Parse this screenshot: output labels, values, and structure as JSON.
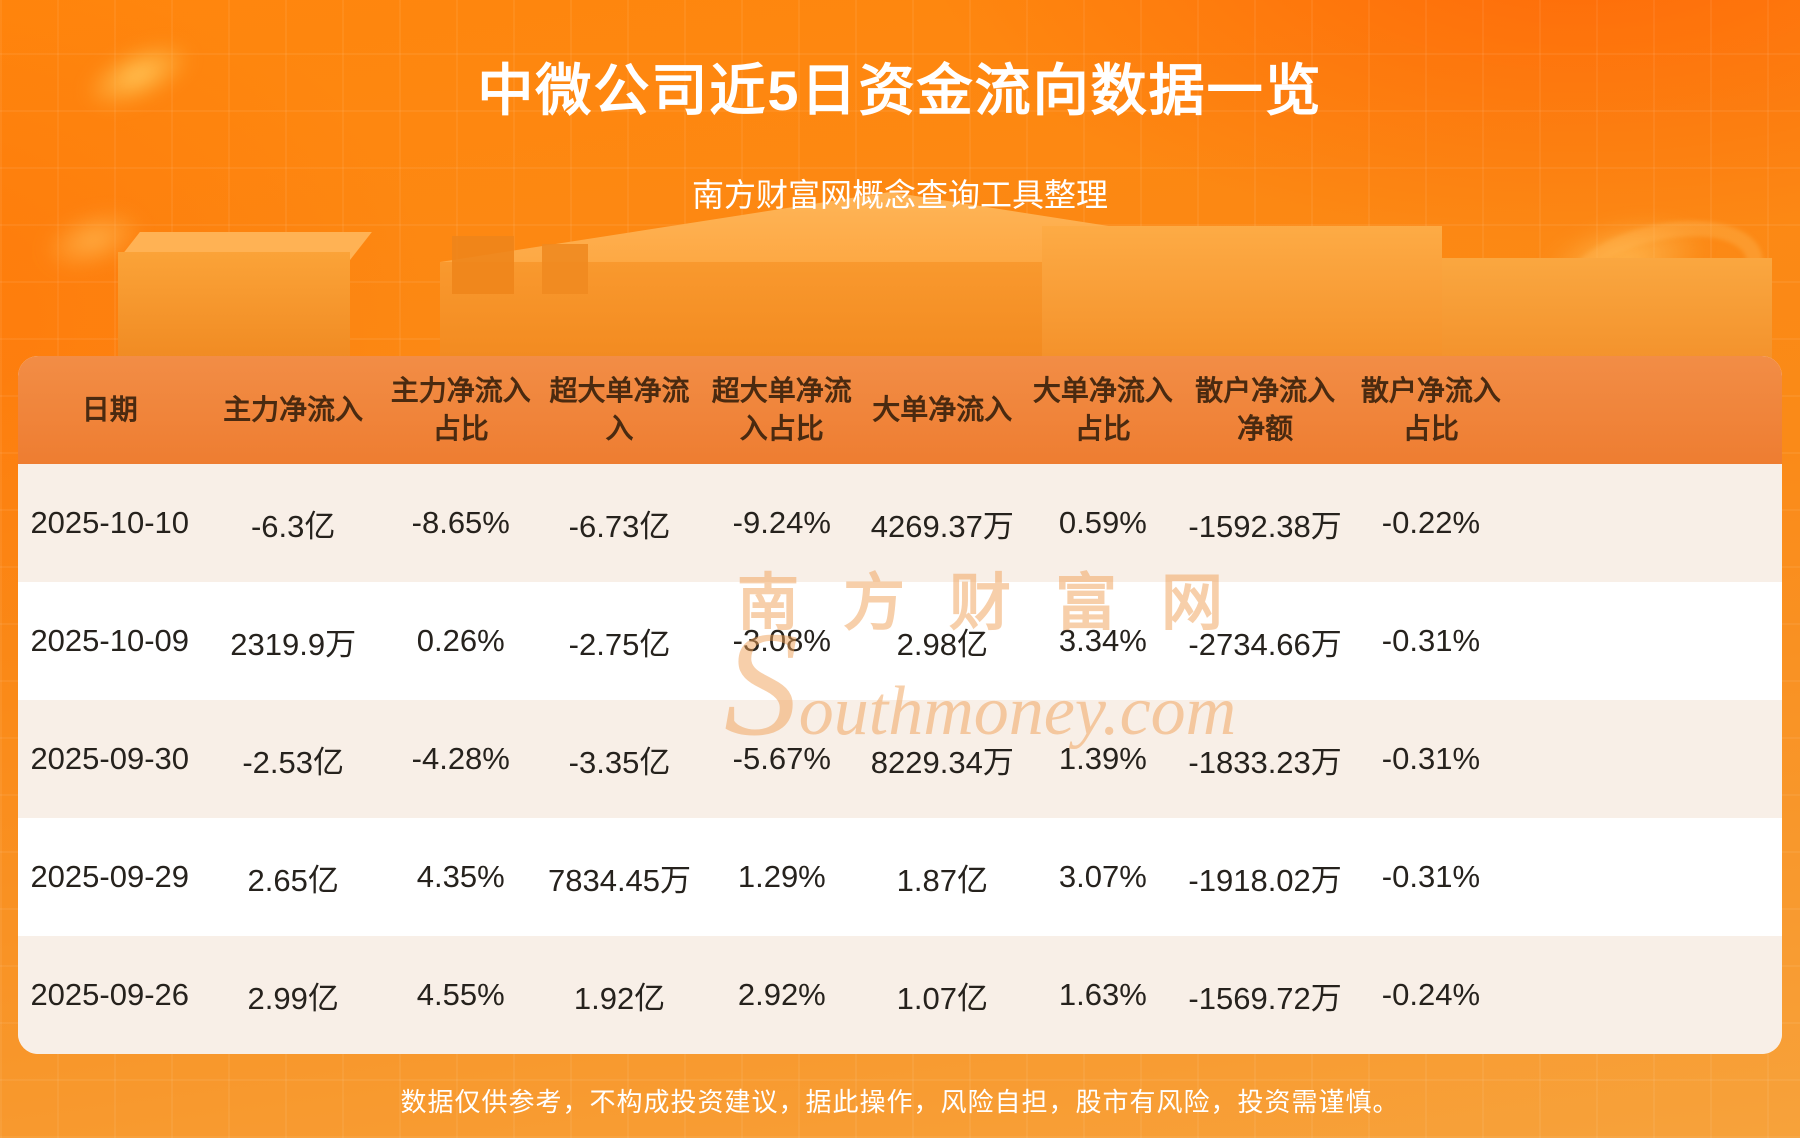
{
  "header": {
    "title": "中微公司近5日资金流向数据一览",
    "subtitle": "南方财富网概念查询工具整理"
  },
  "watermark": {
    "cn": "南方财富网",
    "initial": "S",
    "en": "outhmoney.com"
  },
  "footer": {
    "disclaimer": "数据仅供参考，不构成投资建议，据此操作，风险自担，股市有风险，投资需谨慎。"
  },
  "colors": {
    "background_orange_top": "#ff860d",
    "background_orange_bottom": "#f7a23b",
    "table_header_bg": "#ef8238",
    "table_header_text": "#4a2a10",
    "row_alt_bg": "#f8efe7",
    "row_bg": "#ffffff",
    "body_text": "#26221d",
    "title_text": "#ffffff"
  },
  "chart_data": {
    "type": "table",
    "title": "中微公司近5日资金流向数据一览",
    "columns": [
      "日期",
      "主力净流入",
      "主力净流入占比",
      "超大单净流入",
      "超大单净流入占比",
      "大单净流入",
      "大单净流入占比",
      "散户净流入净额",
      "散户净流入占比"
    ],
    "rows": [
      [
        "2025-10-10",
        "-6.3亿",
        "-8.65%",
        "-6.73亿",
        "-9.24%",
        "4269.37万",
        "0.59%",
        "-1592.38万",
        "-0.22%"
      ],
      [
        "2025-10-09",
        "2319.9万",
        "0.26%",
        "-2.75亿",
        "-3.08%",
        "2.98亿",
        "3.34%",
        "-2734.66万",
        "-0.31%"
      ],
      [
        "2025-09-30",
        "-2.53亿",
        "-4.28%",
        "-3.35亿",
        "-5.67%",
        "8229.34万",
        "1.39%",
        "-1833.23万",
        "-0.31%"
      ],
      [
        "2025-09-29",
        "2.65亿",
        "4.35%",
        "7834.45万",
        "1.29%",
        "1.87亿",
        "3.07%",
        "-1918.02万",
        "-0.31%"
      ],
      [
        "2025-09-26",
        "2.99亿",
        "4.55%",
        "1.92亿",
        "2.92%",
        "1.07亿",
        "1.63%",
        "-1569.72万",
        "-0.24%"
      ]
    ]
  }
}
